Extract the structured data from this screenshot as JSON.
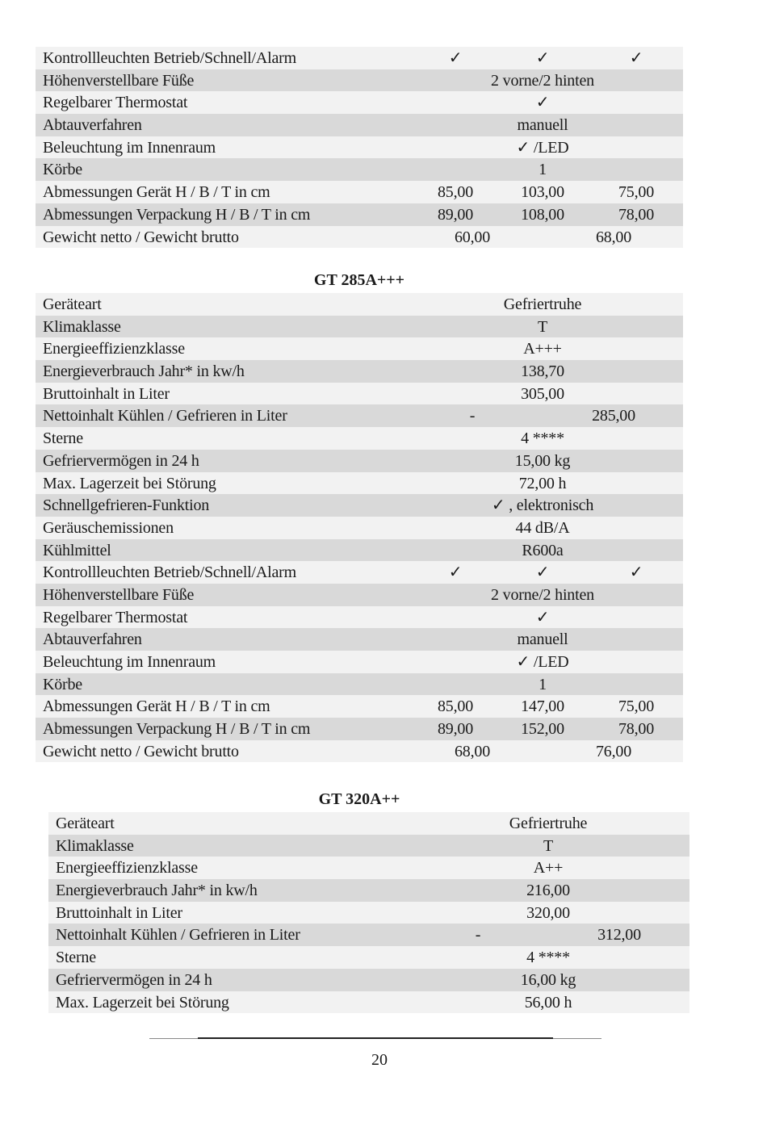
{
  "sections": [
    {
      "title": "",
      "rows": [
        {
          "label": "Kontrollleuchten Betrieb/Schnell/Alarm",
          "values": [
            "✓",
            "✓",
            "✓"
          ]
        },
        {
          "label": "Höhenverstellbare Füße",
          "values": [
            "2 vorne/2 hinten"
          ]
        },
        {
          "label": "Regelbarer Thermostat",
          "values": [
            "✓"
          ]
        },
        {
          "label": "Abtauverfahren",
          "values": [
            "manuell"
          ]
        },
        {
          "label": "Beleuchtung im Innenraum",
          "values": [
            "✓  /LED"
          ]
        },
        {
          "label": "Körbe",
          "values": [
            "1"
          ]
        },
        {
          "label": "Abmessungen Gerät H / B / T in cm",
          "values": [
            "85,00",
            "103,00",
            "75,00"
          ]
        },
        {
          "label": "Abmessungen Verpackung H / B / T in cm",
          "values": [
            "89,00",
            "108,00",
            "78,00"
          ]
        },
        {
          "label": "Gewicht netto / Gewicht brutto",
          "values": [
            "60,00",
            "68,00"
          ]
        }
      ]
    },
    {
      "title": "GT 285A+++",
      "rows": [
        {
          "label": "Geräteart",
          "values": [
            "Gefriertruhe"
          ]
        },
        {
          "label": "Klimaklasse",
          "values": [
            "T"
          ]
        },
        {
          "label": "Energieeffizienzklasse",
          "values": [
            "A+++"
          ]
        },
        {
          "label": "Energieverbrauch Jahr* in kw/h",
          "values": [
            "138,70"
          ]
        },
        {
          "label": "Bruttoinhalt in Liter",
          "values": [
            "305,00"
          ]
        },
        {
          "label": "Nettoinhalt Kühlen / Gefrieren in Liter",
          "values": [
            "-",
            "285,00"
          ]
        },
        {
          "label": "Sterne",
          "values": [
            "4 ****"
          ]
        },
        {
          "label": "Gefriervermögen in 24 h",
          "values": [
            "15,00 kg"
          ]
        },
        {
          "label": "Max. Lagerzeit bei Störung",
          "values": [
            "72,00 h"
          ]
        },
        {
          "label": "Schnellgefrieren-Funktion",
          "values": [
            "✓  , elektronisch"
          ]
        },
        {
          "label": "Geräuschemissionen",
          "values": [
            "44 dB/A"
          ]
        },
        {
          "label": "Kühlmittel",
          "values": [
            "R600a"
          ]
        },
        {
          "label": "Kontrollleuchten Betrieb/Schnell/Alarm",
          "values": [
            "✓",
            "✓",
            "✓"
          ]
        },
        {
          "label": "Höhenverstellbare Füße",
          "values": [
            "2 vorne/2 hinten"
          ]
        },
        {
          "label": "Regelbarer Thermostat",
          "values": [
            "✓"
          ]
        },
        {
          "label": "Abtauverfahren",
          "values": [
            "manuell"
          ]
        },
        {
          "label": "Beleuchtung im Innenraum",
          "values": [
            "✓  /LED"
          ]
        },
        {
          "label": "Körbe",
          "values": [
            "1"
          ]
        },
        {
          "label": "Abmessungen Gerät H / B / T in cm",
          "values": [
            "85,00",
            "147,00",
            "75,00"
          ]
        },
        {
          "label": "Abmessungen Verpackung H / B / T in cm",
          "values": [
            "89,00",
            "152,00",
            "78,00"
          ]
        },
        {
          "label": "Gewicht netto / Gewicht brutto",
          "values": [
            "68,00",
            "76,00"
          ]
        }
      ]
    },
    {
      "title": "GT 320A++",
      "rows": [
        {
          "label": "Geräteart",
          "values": [
            "Gefriertruhe"
          ]
        },
        {
          "label": "Klimaklasse",
          "values": [
            "T"
          ]
        },
        {
          "label": "Energieeffizienzklasse",
          "values": [
            "A++"
          ]
        },
        {
          "label": "Energieverbrauch Jahr* in kw/h",
          "values": [
            "216,00"
          ]
        },
        {
          "label": "Bruttoinhalt in Liter",
          "values": [
            "320,00"
          ]
        },
        {
          "label": "Nettoinhalt Kühlen / Gefrieren in Liter",
          "values": [
            "-",
            "312,00"
          ]
        },
        {
          "label": "Sterne",
          "values": [
            "4 ****"
          ]
        },
        {
          "label": "Gefriervermögen in 24 h",
          "values": [
            "16,00 kg"
          ]
        },
        {
          "label": "Max. Lagerzeit bei Störung",
          "values": [
            "56,00 h"
          ]
        }
      ]
    }
  ],
  "footer": {
    "page_number": "20"
  }
}
